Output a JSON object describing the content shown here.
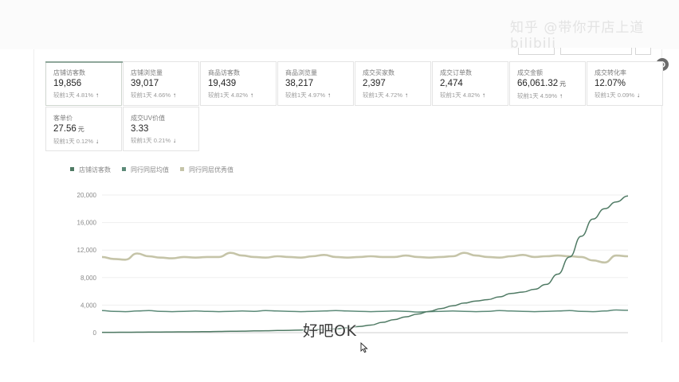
{
  "watermark": "知乎 @带你开店上道 bilibili",
  "cards": [
    {
      "label": "店铺访客数",
      "value": "19,856",
      "unit": "",
      "change": "较前1天 4.81%",
      "arrow": "↑",
      "active": true
    },
    {
      "label": "店铺浏览量",
      "value": "39,017",
      "unit": "",
      "change": "较前1天 4.66%",
      "arrow": "↑",
      "active": false
    },
    {
      "label": "商品访客数",
      "value": "19,439",
      "unit": "",
      "change": "较前1天 4.82%",
      "arrow": "↑",
      "active": false
    },
    {
      "label": "商品浏览量",
      "value": "38,217",
      "unit": "",
      "change": "较前1天 4.97%",
      "arrow": "↑",
      "active": false
    },
    {
      "label": "成交买家数",
      "value": "2,397",
      "unit": "",
      "change": "较前1天 4.72%",
      "arrow": "↑",
      "active": false
    },
    {
      "label": "成交订单数",
      "value": "2,474",
      "unit": "",
      "change": "较前1天 4.82%",
      "arrow": "↑",
      "active": false
    },
    {
      "label": "成交金额",
      "value": "66,061.32",
      "unit": "元",
      "change": "较前1天 4.59%",
      "arrow": "↑",
      "active": false
    },
    {
      "label": "成交转化率",
      "value": "12.07%",
      "unit": "",
      "change": "较前1天 0.09%",
      "arrow": "↓",
      "active": false
    },
    {
      "label": "客单价",
      "value": "27.56",
      "unit": "元",
      "change": "较前1天 0.12%",
      "arrow": "↓",
      "active": false
    },
    {
      "label": "成交UV价值",
      "value": "3.33",
      "unit": "",
      "change": "较前1天 0.21%",
      "arrow": "↓",
      "active": false
    }
  ],
  "subtitle": "好吧OK",
  "chart_data": {
    "type": "line",
    "ylim": [
      0,
      20000
    ],
    "yticks": [
      0,
      4000,
      8000,
      12000,
      16000,
      20000
    ],
    "ytick_labels": [
      "0",
      "4,000",
      "8,000",
      "12,000",
      "16,000",
      "20,000"
    ],
    "grid": true,
    "legend": "top-left",
    "series": [
      {
        "name": "店铺访客数",
        "color": "#4f7a64",
        "values": [
          50,
          50,
          60,
          70,
          80,
          90,
          100,
          120,
          130,
          150,
          170,
          200,
          220,
          250,
          280,
          310,
          340,
          380,
          420,
          480,
          560,
          700,
          900,
          1100,
          1500,
          1900,
          2300,
          2700,
          3100,
          3500,
          3900,
          4300,
          4600,
          4800,
          5200,
          5700,
          5900,
          6300,
          7000,
          8500,
          11000,
          14000,
          16500,
          18000,
          19000,
          19856
        ]
      },
      {
        "name": "同行同层均值",
        "color": "#5c8a78",
        "values": [
          3200,
          3100,
          3050,
          3150,
          3200,
          3100,
          3050,
          3100,
          3150,
          3100,
          3050,
          3100,
          3150,
          3100,
          3200,
          3150,
          3100,
          3050,
          3100,
          3150,
          3200,
          3150,
          3100,
          3050,
          3100,
          3150,
          3100,
          3000,
          3050,
          3100,
          3150,
          3100,
          3050,
          3100,
          3200,
          3150,
          3100,
          3050,
          3100,
          3150,
          3200,
          3100,
          3050,
          3150,
          3300,
          3250
        ]
      },
      {
        "name": "同行同层优秀值",
        "color": "#c5c4a8",
        "values": [
          11000,
          10700,
          10600,
          11500,
          11100,
          10900,
          10800,
          11000,
          10900,
          11000,
          11000,
          11600,
          11200,
          11000,
          10900,
          11100,
          11000,
          10900,
          11100,
          11300,
          11000,
          10900,
          11000,
          11100,
          11000,
          11000,
          11200,
          11000,
          10900,
          11000,
          11100,
          11600,
          11200,
          11000,
          10900,
          11100,
          11300,
          11000,
          11100,
          11200,
          11100,
          11000,
          10500,
          10200,
          11200,
          11100
        ]
      }
    ]
  }
}
